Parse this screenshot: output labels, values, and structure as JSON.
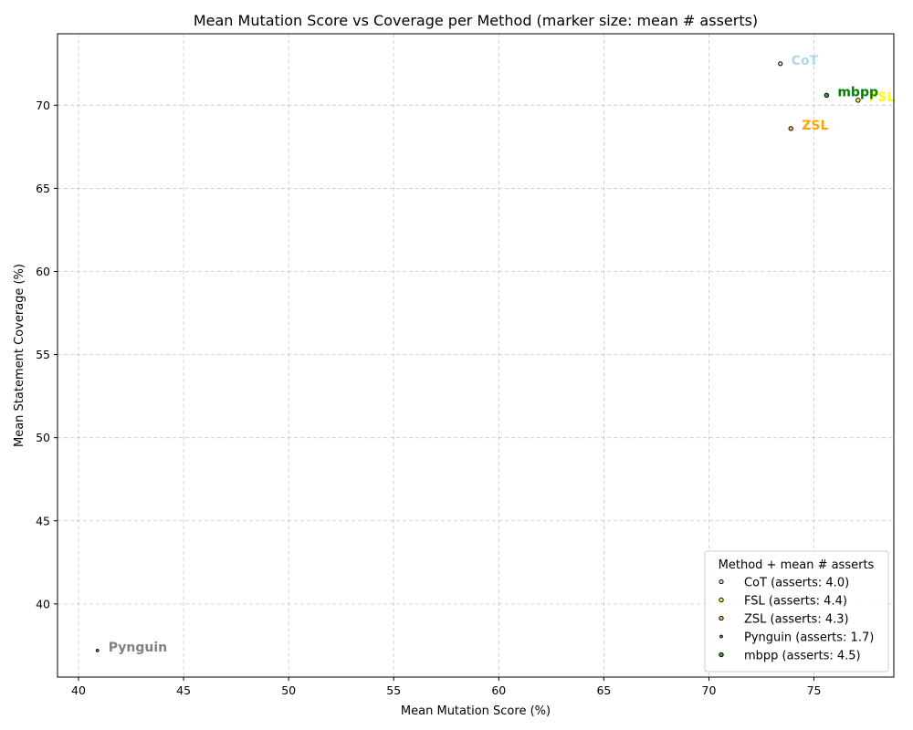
{
  "chart_data": {
    "type": "scatter",
    "title": "Mean Mutation Score vs Coverage per Method (marker size: mean # asserts)",
    "xlabel": "Mean Mutation Score (%)",
    "ylabel": "Mean Statement Coverage (%)",
    "xlim": [
      39.0,
      78.8
    ],
    "ylim": [
      35.6,
      74.3
    ],
    "xticks": [
      40,
      45,
      50,
      55,
      60,
      65,
      70,
      75
    ],
    "yticks": [
      40,
      45,
      50,
      55,
      60,
      65,
      70
    ],
    "grid": true,
    "legend": {
      "title": "Method + mean # asserts",
      "placement": "lower-right"
    },
    "series": [
      {
        "name": "CoT",
        "legend_label": "CoT (asserts: 4.0)",
        "x": 73.4,
        "y": 72.5,
        "asserts": 4.0,
        "color": "#add8e6"
      },
      {
        "name": "FSL",
        "legend_label": "FSL (asserts: 4.4)",
        "x": 77.1,
        "y": 70.3,
        "asserts": 4.4,
        "color": "#ffff00"
      },
      {
        "name": "ZSL",
        "legend_label": "ZSL (asserts: 4.3)",
        "x": 73.9,
        "y": 68.6,
        "asserts": 4.3,
        "color": "#ffa500"
      },
      {
        "name": "Pynguin",
        "legend_label": "Pynguin (asserts: 1.7)",
        "x": 40.9,
        "y": 37.2,
        "asserts": 1.7,
        "color": "#808080"
      },
      {
        "name": "mbpp",
        "legend_label": "mbpp (asserts: 4.5)",
        "x": 75.6,
        "y": 70.6,
        "asserts": 4.5,
        "color": "#008000"
      }
    ]
  }
}
